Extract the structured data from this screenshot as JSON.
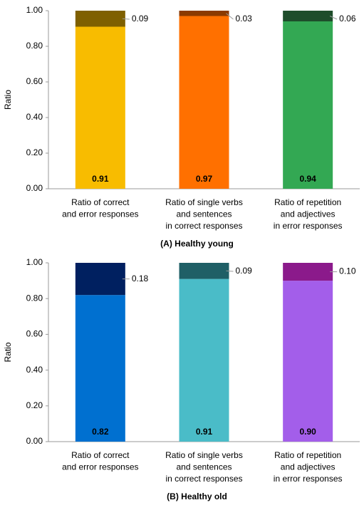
{
  "chart_data": [
    {
      "type": "stacked-bar",
      "title": "(A) Healthy young",
      "y_label": "Ratio",
      "categories": [
        [
          "Ratio of correct",
          "and error responses"
        ],
        [
          "Ratio of single verbs",
          "and sentences",
          "in correct responses"
        ],
        [
          "Ratio of repetition",
          "and adjectives",
          "in error responses"
        ]
      ],
      "series": [
        {
          "colors": [
            "#f8bc00",
            "#ff7000",
            "#33a853"
          ],
          "values": [
            0.91,
            0.97,
            0.94
          ],
          "value_labels": [
            "0.91",
            "0.97",
            "0.94"
          ]
        },
        {
          "colors": [
            "#7f6000",
            "#8b3a00",
            "#1e4d2b"
          ],
          "values": [
            0.09,
            0.03,
            0.06
          ],
          "value_labels": [
            "0.09",
            "0.03",
            "0.06"
          ]
        }
      ],
      "ylim": [
        0,
        1
      ],
      "yticks": [
        {
          "value": 0,
          "label": "0.00"
        },
        {
          "value": 0.2,
          "label": "0.20"
        },
        {
          "value": 0.4,
          "label": "0.40"
        },
        {
          "value": 0.6,
          "label": "0.60"
        },
        {
          "value": 0.8,
          "label": "0.80"
        },
        {
          "value": 1,
          "label": "1.00"
        }
      ]
    },
    {
      "type": "stacked-bar",
      "title": "(B) Healthy old",
      "y_label": "Ratio",
      "categories": [
        [
          "Ratio of correct",
          "and error responses"
        ],
        [
          "Ratio of single verbs",
          "and sentences",
          "in correct responses"
        ],
        [
          "Ratio of repetition",
          "and adjectives",
          "in error responses"
        ]
      ],
      "series": [
        {
          "colors": [
            "#0070d0",
            "#4abcc8",
            "#a35eea"
          ],
          "values": [
            0.82,
            0.91,
            0.9
          ],
          "value_labels": [
            "0.82",
            "0.91",
            "0.90"
          ]
        },
        {
          "colors": [
            "#002060",
            "#1f5f66",
            "#8b1a8b"
          ],
          "values": [
            0.18,
            0.09,
            0.1
          ],
          "value_labels": [
            "0.18",
            "0.09",
            "0.10"
          ]
        }
      ],
      "ylim": [
        0,
        1
      ],
      "yticks": [
        {
          "value": 0,
          "label": "0.00"
        },
        {
          "value": 0.2,
          "label": "0.20"
        },
        {
          "value": 0.4,
          "label": "0.40"
        },
        {
          "value": 0.6,
          "label": "0.60"
        },
        {
          "value": 0.8,
          "label": "0.80"
        },
        {
          "value": 1,
          "label": "1.00"
        }
      ]
    }
  ]
}
